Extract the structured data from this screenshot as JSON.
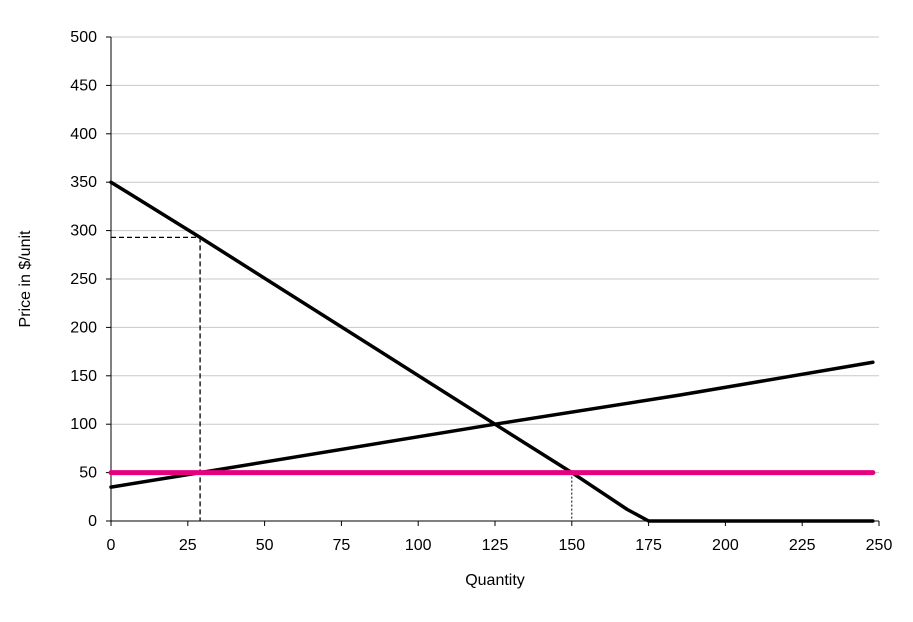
{
  "chart_data": {
    "type": "line",
    "title": "",
    "xlabel": "Quantity",
    "ylabel": "Price in $/unit",
    "xlim": [
      0,
      250
    ],
    "ylim": [
      0,
      500
    ],
    "xticks": [
      0,
      25,
      50,
      75,
      100,
      125,
      150,
      175,
      200,
      225,
      250
    ],
    "yticks": [
      0,
      50,
      100,
      150,
      200,
      250,
      300,
      350,
      400,
      450,
      500
    ],
    "grid": "horizontal",
    "legend": "none",
    "series": [
      {
        "id": "demand",
        "color": "#000000",
        "points": [
          [
            0,
            350
          ],
          [
            29,
            293
          ],
          [
            125,
            100
          ],
          [
            150,
            50
          ],
          [
            168,
            12
          ],
          [
            175,
            0
          ],
          [
            248,
            0
          ]
        ]
      },
      {
        "id": "supply",
        "color": "#000000",
        "points": [
          [
            0,
            35
          ],
          [
            29,
            50
          ],
          [
            125,
            100
          ],
          [
            185,
            130
          ],
          [
            248,
            164
          ]
        ]
      },
      {
        "id": "price-line",
        "color": "#e6007e",
        "points": [
          [
            0,
            50
          ],
          [
            248,
            50
          ]
        ]
      }
    ],
    "guides": [
      {
        "id": "guide-horizontal-293",
        "style": "dashed",
        "points": [
          [
            0,
            293
          ],
          [
            29,
            293
          ]
        ]
      },
      {
        "id": "guide-vertical-29",
        "style": "dashed",
        "points": [
          [
            29,
            293
          ],
          [
            29,
            0
          ]
        ]
      },
      {
        "id": "guide-vertical-150",
        "style": "dotted",
        "points": [
          [
            150,
            50
          ],
          [
            150,
            0
          ]
        ]
      }
    ]
  }
}
